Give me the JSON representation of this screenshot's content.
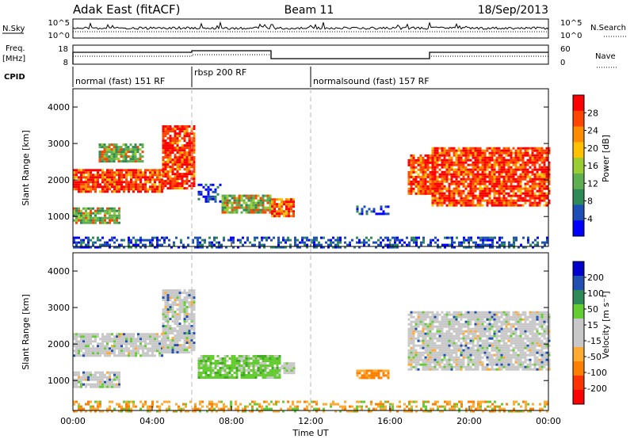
{
  "header": {
    "station": "Adak East (fitACF)",
    "beam": "Beam 11",
    "date": "18/Sep/2013"
  },
  "top_panel": {
    "nsky_label": "N.Sky",
    "nsky_ticks": [
      "10^5",
      "10^0"
    ],
    "nsearch_label": "N.Search",
    "nsearch_ticks": [
      "10^5",
      "10^0"
    ],
    "freq_label": "Freq.",
    "freq_unit": "[MHz]",
    "freq_ticks": [
      "18",
      "8"
    ],
    "nave_label": "Nave",
    "nave_ticks": [
      "60",
      "0"
    ],
    "cpid_label": "CPID",
    "modes": [
      {
        "name": "normal (fast) 151 RF",
        "start_hour": 0,
        "end_hour": 6
      },
      {
        "name": "rbsp 200 RF",
        "start_hour": 6,
        "end_hour": 12
      },
      {
        "name": "normalsound (fast) 157 RF",
        "start_hour": 12,
        "end_hour": 24
      }
    ]
  },
  "colors": {
    "power_scale": [
      "#0000ff",
      "#1e4fb4",
      "#2e8b57",
      "#5fae4f",
      "#9acd32",
      "#ffc000",
      "#ff8c00",
      "#ff4500",
      "#ff0000"
    ],
    "velocity_scale": [
      "#ff0000",
      "#ff3300",
      "#ff8000",
      "#ffaa33",
      "#c8c8c8",
      "#c8c8c8",
      "#66cc33",
      "#2e8b57",
      "#2050b0",
      "#0000cc"
    ]
  },
  "chart_data": [
    {
      "type": "heatmap",
      "name": "power",
      "xlabel": "",
      "ylabel": "Slant Range [km]",
      "xlim": [
        0,
        24
      ],
      "ylim": [
        180,
        4500
      ],
      "yticks": [
        1000,
        2000,
        3000,
        4000
      ],
      "colorbar_label": "Power [dB]",
      "colorbar_ticks": [
        "28",
        "24",
        "20",
        "16",
        "12",
        "8",
        "4"
      ],
      "colorbar_range": [
        0,
        32
      ],
      "regions": [
        {
          "x0": 0.0,
          "x1": 4.5,
          "y0": 1700,
          "y1": 2300,
          "level": "high"
        },
        {
          "x0": 4.5,
          "x1": 6.1,
          "y0": 1800,
          "y1": 3500,
          "level": "high"
        },
        {
          "x0": 0.0,
          "x1": 2.3,
          "y0": 800,
          "y1": 1250,
          "level": "mid"
        },
        {
          "x0": 1.3,
          "x1": 3.5,
          "y0": 2500,
          "y1": 3000,
          "level": "mid"
        },
        {
          "x0": 6.3,
          "x1": 7.5,
          "y0": 1400,
          "y1": 1900,
          "level": "low"
        },
        {
          "x0": 7.5,
          "x1": 10.0,
          "y0": 1100,
          "y1": 1600,
          "level": "mid"
        },
        {
          "x0": 10.0,
          "x1": 11.2,
          "y0": 1000,
          "y1": 1500,
          "level": "high"
        },
        {
          "x0": 14.3,
          "x1": 15.9,
          "y0": 1100,
          "y1": 1300,
          "level": "low"
        },
        {
          "x0": 16.9,
          "x1": 18.3,
          "y0": 1600,
          "y1": 2700,
          "level": "high"
        },
        {
          "x0": 18.1,
          "x1": 24.0,
          "y0": 1300,
          "y1": 2900,
          "level": "high"
        },
        {
          "x0": 0.0,
          "x1": 24.0,
          "y0": 180,
          "y1": 450,
          "level": "low"
        }
      ]
    },
    {
      "type": "heatmap",
      "name": "velocity",
      "xlabel": "Time UT",
      "ylabel": "Slant Range [km]",
      "xlim": [
        0,
        24
      ],
      "ylim": [
        180,
        4500
      ],
      "xticks": [
        "00:00",
        "04:00",
        "08:00",
        "12:00",
        "16:00",
        "20:00",
        "00:00"
      ],
      "yticks": [
        1000,
        2000,
        3000,
        4000
      ],
      "colorbar_label": "Velocity [m s⁻¹]",
      "colorbar_ticks": [
        "200",
        "100",
        "50",
        "15",
        "-15",
        "-50",
        "-100",
        "-200"
      ],
      "colorbar_range": [
        -250,
        250
      ],
      "regions": [
        {
          "x0": 0.0,
          "x1": 4.5,
          "y0": 1700,
          "y1": 2300,
          "level": "near-zero"
        },
        {
          "x0": 4.5,
          "x1": 6.1,
          "y0": 1800,
          "y1": 3500,
          "level": "near-zero"
        },
        {
          "x0": 0.0,
          "x1": 2.3,
          "y0": 800,
          "y1": 1250,
          "level": "near-zero"
        },
        {
          "x0": 6.3,
          "x1": 10.5,
          "y0": 1100,
          "y1": 1700,
          "level": "positive"
        },
        {
          "x0": 10.5,
          "x1": 11.2,
          "y0": 1200,
          "y1": 1500,
          "level": "near-zero"
        },
        {
          "x0": 14.3,
          "x1": 15.9,
          "y0": 1100,
          "y1": 1300,
          "level": "negative"
        },
        {
          "x0": 16.9,
          "x1": 24.0,
          "y0": 1300,
          "y1": 2900,
          "level": "near-zero"
        },
        {
          "x0": 0.0,
          "x1": 24.0,
          "y0": 180,
          "y1": 450,
          "level": "mixed"
        }
      ]
    }
  ]
}
